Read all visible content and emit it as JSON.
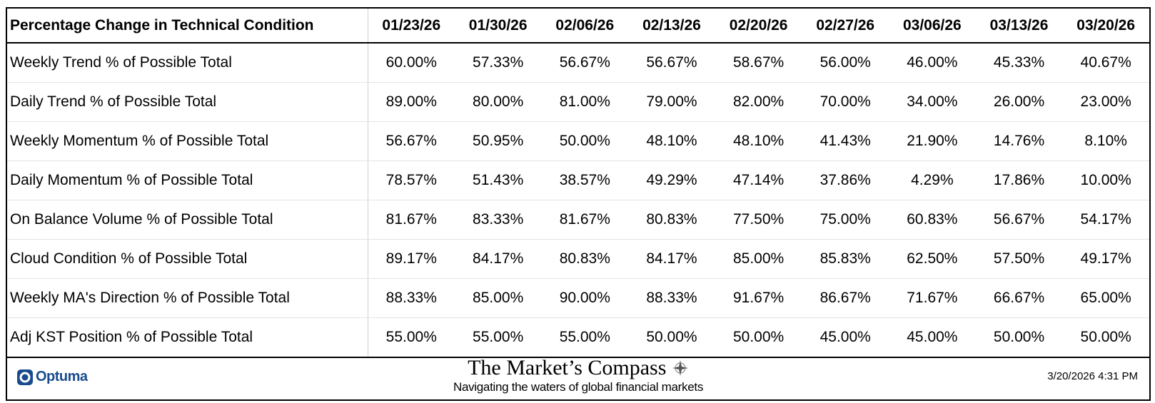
{
  "header": {
    "title": "Percentage Change in Technical Condition",
    "columns": [
      "01/23/26",
      "01/30/26",
      "02/06/26",
      "02/13/26",
      "02/20/26",
      "02/27/26",
      "03/06/26",
      "03/13/26",
      "03/20/26"
    ]
  },
  "table": {
    "rows": [
      {
        "label": "Weekly Trend % of Possible Total",
        "values": [
          "60.00%",
          "57.33%",
          "56.67%",
          "56.67%",
          "58.67%",
          "56.00%",
          "46.00%",
          "45.33%",
          "40.67%"
        ]
      },
      {
        "label": "Daily Trend % of Possible Total",
        "values": [
          "89.00%",
          "80.00%",
          "81.00%",
          "79.00%",
          "82.00%",
          "70.00%",
          "34.00%",
          "26.00%",
          "23.00%"
        ]
      },
      {
        "label": "Weekly Momentum % of Possible Total",
        "values": [
          "56.67%",
          "50.95%",
          "50.00%",
          "48.10%",
          "48.10%",
          "41.43%",
          "21.90%",
          "14.76%",
          "8.10%"
        ]
      },
      {
        "label": "Daily Momentum % of Possible Total",
        "values": [
          "78.57%",
          "51.43%",
          "38.57%",
          "49.29%",
          "47.14%",
          "37.86%",
          "4.29%",
          "17.86%",
          "10.00%"
        ]
      },
      {
        "label": "On Balance Volume % of Possible Total",
        "values": [
          "81.67%",
          "83.33%",
          "81.67%",
          "80.83%",
          "77.50%",
          "75.00%",
          "60.83%",
          "56.67%",
          "54.17%"
        ]
      },
      {
        "label": "Cloud Condition % of Possible Total",
        "values": [
          "89.17%",
          "84.17%",
          "80.83%",
          "84.17%",
          "85.00%",
          "85.83%",
          "62.50%",
          "57.50%",
          "49.17%"
        ]
      },
      {
        "label": "Weekly MA's Direction % of Possible Total",
        "values": [
          "88.33%",
          "85.00%",
          "90.00%",
          "88.33%",
          "91.67%",
          "86.67%",
          "71.67%",
          "66.67%",
          "65.00%"
        ]
      },
      {
        "label": "Adj KST Position % of Possible Total",
        "values": [
          "55.00%",
          "55.00%",
          "55.00%",
          "50.00%",
          "50.00%",
          "45.00%",
          "45.00%",
          "50.00%",
          "50.00%"
        ]
      }
    ]
  },
  "footer": {
    "logo": "Optuma",
    "brand": "The Market’s Compass",
    "tagline": "Navigating the waters of global financial markets",
    "timestamp": "3/20/2026 4:31 PM"
  }
}
